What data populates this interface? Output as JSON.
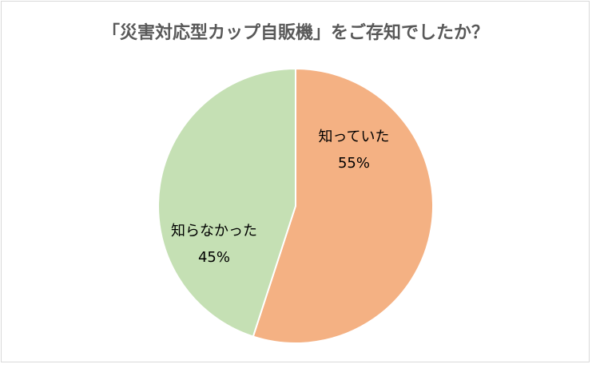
{
  "chart_data": {
    "type": "pie",
    "title": "「災害対応型カップ自販機」をご存知でしたか？",
    "categories": [
      "知っていた",
      "知らなかった"
    ],
    "values": [
      55,
      45
    ],
    "value_labels": [
      "55%",
      "45%"
    ],
    "colors": [
      "#f4b183",
      "#c5e0b4"
    ]
  }
}
